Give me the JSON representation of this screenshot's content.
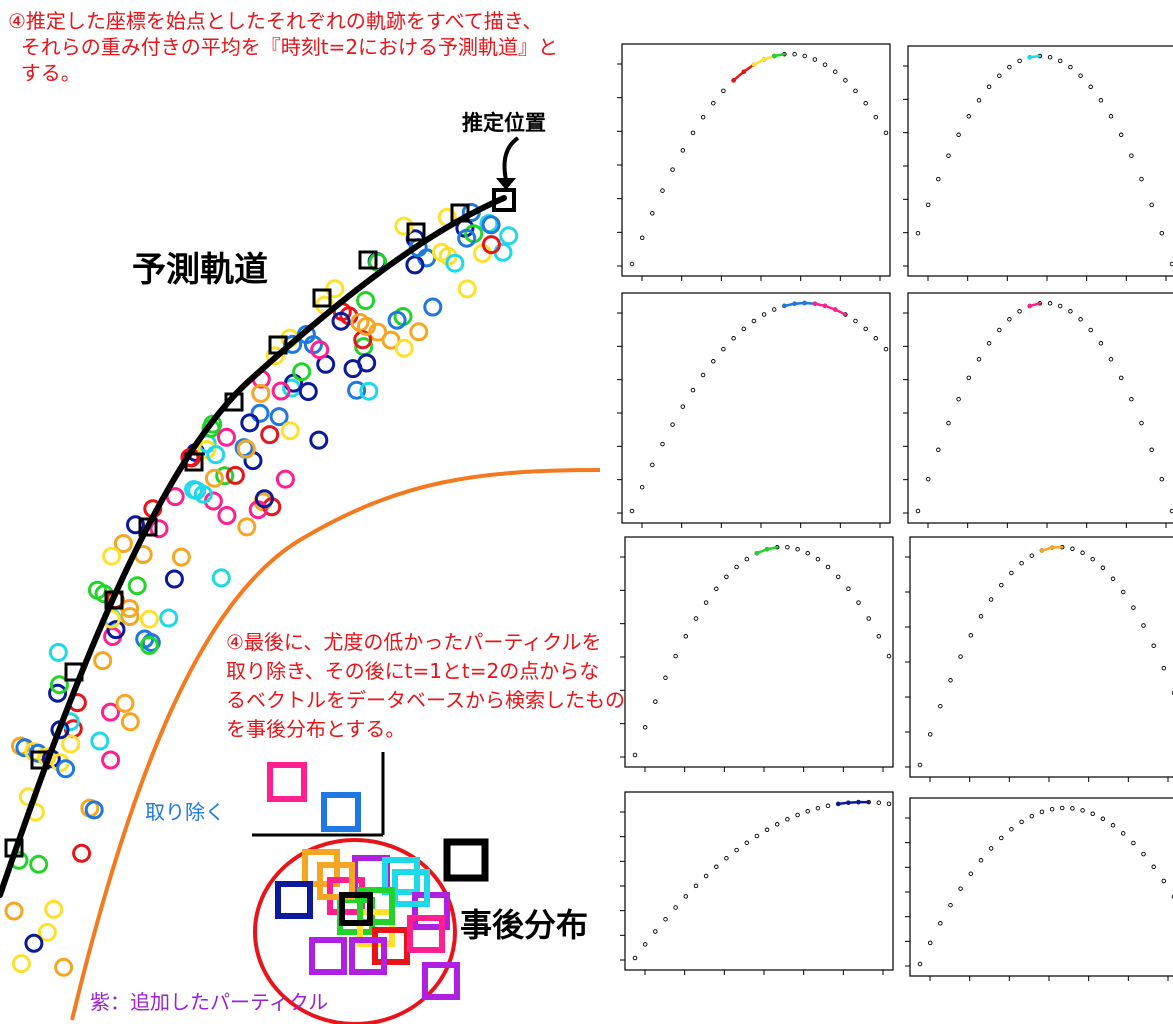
{
  "annotations": {
    "step4_note": "④推定した座標を始点としたそれぞれの軌跡をすべて描き、\n  それらの重み付きの平均を『時刻t=2における予測軌道』と\n  する。",
    "estimated_position": "推定位置",
    "predicted_trajectory": "予測軌道",
    "step4_last": "④最後に、尤度の低かったパーティクルを\n取り除き、その後にt=1とt=2の点からな\nるベクトルをデータベースから検索したもの\nを事後分布とする。",
    "remove": "取り除く",
    "posterior": "事後分布",
    "purple_legend": "紫：追加したパーティクル"
  },
  "colors": {
    "trajectory": "#000000",
    "boundary": "#f47a20",
    "annotation_red": "#e8141a",
    "remove_blue": "#1e78e0",
    "purple": "#b020e0",
    "circle_red": "#e8141a"
  },
  "particle_colors": [
    "#0a1a9a",
    "#1e78e0",
    "#22d42a",
    "#ffe02a",
    "#f5a623",
    "#ff1f8f",
    "#1fd8e8",
    "#e8141a"
  ],
  "panels": [
    {
      "id": "p1",
      "highlight": [
        {
          "color": "#e8141a"
        },
        {
          "color": "#ffe02a"
        },
        {
          "color": "#22d42a"
        }
      ]
    },
    {
      "id": "p2",
      "highlight": [
        {
          "color": "#1fd8e8"
        }
      ]
    },
    {
      "id": "p3",
      "highlight": [
        {
          "color": "#1e78e0"
        },
        {
          "color": "#ff1f8f"
        }
      ]
    },
    {
      "id": "p4",
      "highlight": [
        {
          "color": "#ff1f8f"
        }
      ]
    },
    {
      "id": "p5",
      "highlight": [
        {
          "color": "#22d42a"
        }
      ]
    },
    {
      "id": "p6",
      "highlight": [
        {
          "color": "#f5a623"
        }
      ]
    },
    {
      "id": "p7",
      "highlight": [
        {
          "color": "#0a1a9a"
        }
      ]
    },
    {
      "id": "p8",
      "highlight": []
    }
  ]
}
